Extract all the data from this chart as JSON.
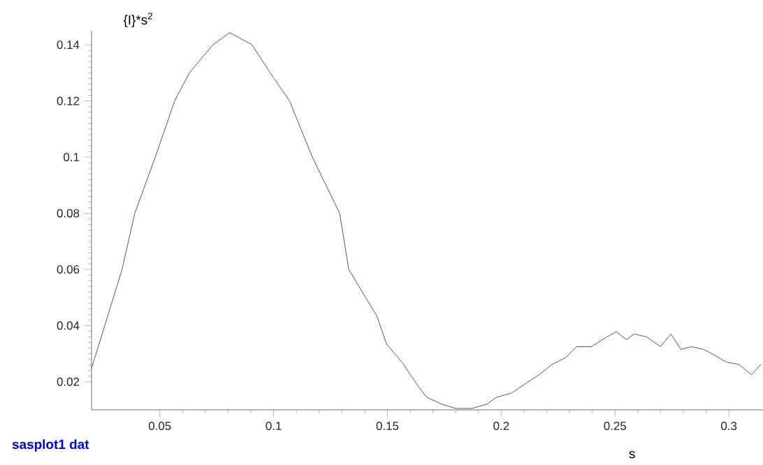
{
  "chart_data": {
    "type": "line",
    "xlabel": "s",
    "ylabel": "{I}*s$^{2}$",
    "annotations": [
      "sasplot1 dat"
    ],
    "xlim": [
      0.02,
      0.315
    ],
    "ylim": [
      0.01,
      0.145
    ],
    "xticks": [
      0.05,
      0.1,
      0.15,
      0.2,
      0.25,
      0.3
    ],
    "yticks": [
      0.02,
      0.04,
      0.06,
      0.08,
      0.1,
      0.12,
      0.14
    ],
    "x": [
      0.02,
      0.0258,
      0.0334,
      0.039,
      0.048,
      0.0565,
      0.063,
      0.0733,
      0.0807,
      0.0905,
      0.0985,
      0.107,
      0.117,
      0.129,
      0.133,
      0.1454,
      0.1497,
      0.1564,
      0.163,
      0.1672,
      0.174,
      0.18,
      0.187,
      0.1936,
      0.198,
      0.2046,
      0.211,
      0.2166,
      0.222,
      0.2285,
      0.233,
      0.2396,
      0.2464,
      0.2506,
      0.255,
      0.2583,
      0.2638,
      0.27,
      0.2745,
      0.279,
      0.2834,
      0.289,
      0.293,
      0.2988,
      0.3043,
      0.31,
      0.3141
    ],
    "series": [
      {
        "color": "#3a3aa8",
        "values": [
          0.0248,
          0.04,
          0.06,
          0.08,
          0.1,
          0.12,
          0.13,
          0.14,
          0.1443,
          0.14,
          0.13,
          0.12,
          0.1,
          0.08,
          0.06,
          0.0433,
          0.0333,
          0.027,
          0.019,
          0.0145,
          0.012,
          0.0105,
          0.0105,
          0.012,
          0.0145,
          0.016,
          0.0195,
          0.0225,
          0.026,
          0.0287,
          0.0325,
          0.0325,
          0.036,
          0.0378,
          0.035,
          0.037,
          0.036,
          0.0325,
          0.037,
          0.0315,
          0.0325,
          0.0315,
          0.0298,
          0.027,
          0.0262,
          0.0225,
          0.0262
        ]
      }
    ]
  }
}
